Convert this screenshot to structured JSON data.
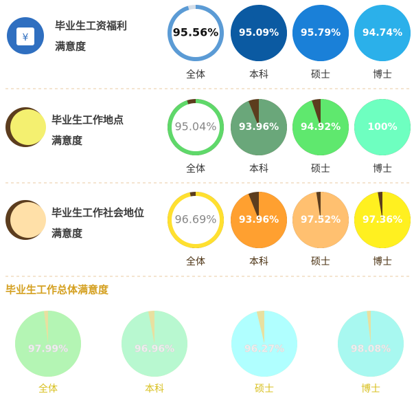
{
  "rows": [
    {
      "title": [
        "毕业生工资福利",
        "满意度"
      ],
      "items": [
        {
          "label": "全体",
          "value": 95.56,
          "value_label": "95.56%",
          "color": "#5b9bd5",
          "track": "#d5dee8",
          "ring": true
        },
        {
          "label": "本科",
          "value": 95.09,
          "value_label": "95.09%",
          "color": "#0b5aa2",
          "track": "#0b5aa2",
          "ring": false
        },
        {
          "label": "硕士",
          "value": 95.79,
          "value_label": "95.79%",
          "color": "#1a80d8",
          "track": "#1a80d8",
          "ring": false
        },
        {
          "label": "博士",
          "value": 94.74,
          "value_label": "94.74%",
          "color": "#2bb0ea",
          "track": "#2bb0ea",
          "ring": false
        }
      ]
    },
    {
      "title": [
        "毕业生工作地点",
        "满意度"
      ],
      "items": [
        {
          "label": "全体",
          "value": 95.04,
          "value_label": "95.04%",
          "color": "#5fd86a",
          "track": "#5c3d1e",
          "ring": true
        },
        {
          "label": "本科",
          "value": 93.96,
          "value_label": "93.96%",
          "color": "#6aa77a",
          "track": "#5c3d1e",
          "ring": false
        },
        {
          "label": "硕士",
          "value": 94.92,
          "value_label": "94.92%",
          "color": "#5fe86e",
          "track": "#5c3d1e",
          "ring": false
        },
        {
          "label": "博士",
          "value": 100,
          "value_label": "100%",
          "color": "#6effc0",
          "track": "#5c3d1e",
          "ring": false
        }
      ]
    },
    {
      "title": [
        "毕业生工作社会地位",
        "满意度"
      ],
      "items": [
        {
          "label": "全体",
          "value": 96.69,
          "value_label": "96.69%",
          "color": "#ffe030",
          "track": "#5c3d1e",
          "ring": true
        },
        {
          "label": "本科",
          "value": 93.96,
          "value_label": "93.96%",
          "color": "#ffa030",
          "track": "#5c3d1e",
          "ring": false
        },
        {
          "label": "硕士",
          "value": 97.52,
          "value_label": "97.52%",
          "color": "#ffc070",
          "track": "#5c3d1e",
          "ring": false
        },
        {
          "label": "博士",
          "value": 97.36,
          "value_label": "97.36%",
          "color": "#fff020",
          "track": "#5c3d1e",
          "ring": false
        }
      ]
    }
  ],
  "overall": {
    "title": "毕业生工作总体满意度",
    "items": [
      {
        "label": "全体",
        "value": 97.99,
        "value_label": "97.99%",
        "color": "#b4f5b4",
        "track": "#e8e0a0"
      },
      {
        "label": "本科",
        "value": 96.96,
        "value_label": "96.96%",
        "color": "#b8f8d0",
        "track": "#e8e0a0"
      },
      {
        "label": "硕士",
        "value": 96.27,
        "value_label": "96.27%",
        "color": "#b0ffff",
        "track": "#e8e0a0"
      },
      {
        "label": "博士",
        "value": 98.08,
        "value_label": "98.08%",
        "color": "#a8f8f0",
        "track": "#e8e0a0"
      }
    ]
  }
}
